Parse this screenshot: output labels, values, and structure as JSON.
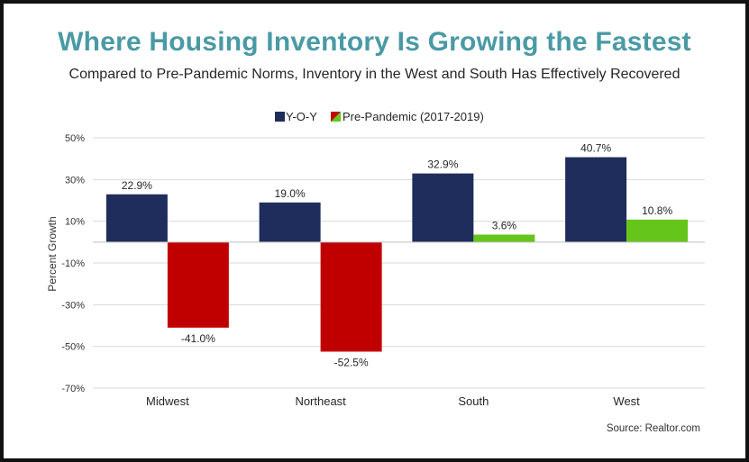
{
  "header": {
    "title": "Where Housing Inventory Is Growing the Fastest",
    "subtitle": "Compared to Pre-Pandemic Norms, Inventory in the West and South Has Effectively Recovered"
  },
  "footer": {
    "source": "Source: Realtor.com"
  },
  "colors": {
    "title": "#4a9aa5",
    "yoy": "#1f2d5c",
    "pre_negative": "#c00000",
    "pre_positive": "#66c51a",
    "grid": "#d9d9d9"
  },
  "chart_data": {
    "type": "bar",
    "categories": [
      "Midwest",
      "Northeast",
      "South",
      "West"
    ],
    "series": [
      {
        "name": "Y-O-Y",
        "values": [
          22.9,
          19.0,
          32.9,
          40.7
        ],
        "labels": [
          "22.9%",
          "19.0%",
          "32.9%",
          "40.7%"
        ]
      },
      {
        "name": "Pre-Pandemic (2017-2019)",
        "values": [
          -41.0,
          -52.5,
          3.6,
          10.8
        ],
        "labels": [
          "-41.0%",
          "-52.5%",
          "3.6%",
          "10.8%"
        ]
      }
    ],
    "ylabel": "Percent Growth",
    "yticks": [
      "50%",
      "30%",
      "10%",
      "-10%",
      "-30%",
      "-50%",
      "-70%"
    ],
    "ytick_values": [
      50,
      30,
      10,
      -10,
      -30,
      -50,
      -70
    ],
    "ylim": [
      -70,
      50
    ],
    "grid": true,
    "legend": "top"
  }
}
